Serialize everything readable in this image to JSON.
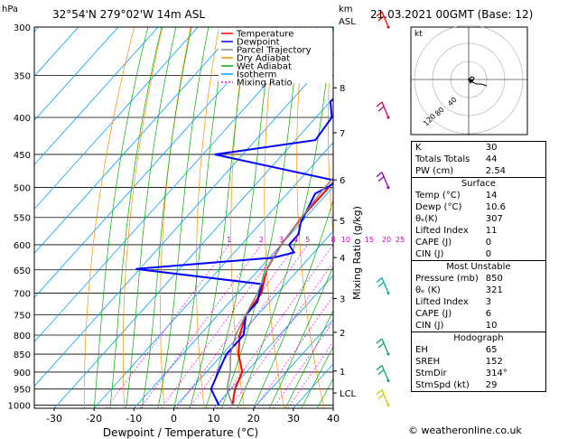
{
  "header": {
    "hpa_unit": "hPa",
    "location": "32°54'N 279°02'W 14m ASL",
    "km_unit": "km",
    "asl_unit": "ASL",
    "datetime": "21.03.2021 00GMT (Base: 12)"
  },
  "legend": [
    {
      "label": "Temperature",
      "color": "#ff0000"
    },
    {
      "label": "Dewpoint",
      "color": "#0000ff"
    },
    {
      "label": "Parcel Trajectory",
      "color": "#888888"
    },
    {
      "label": "Dry Adiabat",
      "color": "#ff8c00"
    },
    {
      "label": "Wet Adiabat",
      "color": "#00b000"
    },
    {
      "label": "Isotherm",
      "color": "#00a0ff"
    },
    {
      "label": "Mixing Ratio",
      "color": "#ff00ff"
    }
  ],
  "chart_data": {
    "type": "line",
    "xlabel": "Dewpoint / Temperature (°C)",
    "ylabel_right": "Mixing Ratio (g/kg)",
    "x_ticks": [
      -30,
      -20,
      -10,
      0,
      10,
      20,
      30,
      40
    ],
    "xlim": [
      -35,
      40
    ],
    "pressure_ticks": [
      300,
      350,
      400,
      450,
      500,
      550,
      600,
      650,
      700,
      750,
      800,
      850,
      900,
      950,
      1000
    ],
    "ylim": [
      1010,
      300
    ],
    "height_ticks": [
      {
        "label": "8",
        "p": 364
      },
      {
        "label": "7",
        "p": 420
      },
      {
        "label": "6",
        "p": 488
      },
      {
        "label": "5",
        "p": 555
      },
      {
        "label": "4",
        "p": 625
      },
      {
        "label": "3",
        "p": 712
      },
      {
        "label": "2",
        "p": 793
      },
      {
        "label": "1",
        "p": 897
      },
      {
        "label": "LCL",
        "p": 962
      }
    ],
    "mixing_ratio_labels": [
      "1",
      "2",
      "3",
      "4",
      "5",
      "8",
      "10",
      "15",
      "20",
      "25"
    ],
    "series": [
      {
        "name": "Temperature",
        "points": [
          [
            -1,
            300
          ],
          [
            -3,
            350
          ],
          [
            -6,
            400
          ],
          [
            -11,
            450
          ],
          [
            -11,
            500
          ],
          [
            -11,
            550
          ],
          [
            -10,
            600
          ],
          [
            -8,
            650
          ],
          [
            -4,
            700
          ],
          [
            -3,
            750
          ],
          [
            0,
            800
          ],
          [
            4,
            850
          ],
          [
            9,
            900
          ],
          [
            11,
            950
          ],
          [
            14,
            1000
          ]
        ]
      },
      {
        "name": "Dewpoint",
        "points": [
          [
            -18,
            300
          ],
          [
            -20,
            320
          ],
          [
            -22,
            340
          ],
          [
            -28,
            360
          ],
          [
            -30,
            380
          ],
          [
            -26,
            400
          ],
          [
            -25,
            430
          ],
          [
            -47,
            450
          ],
          [
            -10,
            490
          ],
          [
            -13,
            510
          ],
          [
            -10,
            560
          ],
          [
            -8,
            580
          ],
          [
            -8,
            600
          ],
          [
            -5,
            615
          ],
          [
            -9,
            625
          ],
          [
            -41,
            648
          ],
          [
            -6,
            680
          ],
          [
            -3,
            720
          ],
          [
            -3,
            750
          ],
          [
            1,
            800
          ],
          [
            1,
            850
          ],
          [
            3,
            900
          ],
          [
            5,
            950
          ],
          [
            10.6,
            1000
          ]
        ]
      },
      {
        "name": "Parcel Trajectory",
        "points": [
          [
            -10,
            300
          ],
          [
            -10,
            350
          ],
          [
            -10,
            400
          ],
          [
            -12,
            450
          ],
          [
            -12,
            500
          ],
          [
            -11,
            550
          ],
          [
            -10,
            600
          ],
          [
            -8,
            650
          ],
          [
            -5,
            700
          ],
          [
            -3,
            750
          ],
          [
            -1,
            800
          ],
          [
            2,
            850
          ],
          [
            6,
            900
          ],
          [
            9,
            950
          ],
          [
            14,
            1000
          ]
        ]
      }
    ]
  },
  "winds": [
    {
      "p": 300,
      "color": "#ff0000"
    },
    {
      "p": 400,
      "color": "#cc0066"
    },
    {
      "p": 500,
      "color": "#8800cc"
    },
    {
      "p": 700,
      "color": "#00aaaa"
    },
    {
      "p": 850,
      "color": "#00aa66"
    },
    {
      "p": 925,
      "color": "#00aa66"
    },
    {
      "p": 1000,
      "color": "#cccc00"
    }
  ],
  "hodograph": {
    "label": "kt",
    "ring_labels": [
      "40",
      "80",
      "120"
    ]
  },
  "indices": [
    {
      "label": "K",
      "value": "30"
    },
    {
      "label": "Totals Totals",
      "value": "44"
    },
    {
      "label": "PW (cm)",
      "value": "2.54"
    }
  ],
  "surface": {
    "title": "Surface",
    "rows": [
      {
        "label": "Temp (°C)",
        "value": "14"
      },
      {
        "label": "Dewp (°C)",
        "value": "10.6"
      },
      {
        "label": "θₑ(K)",
        "value": "307"
      },
      {
        "label": "Lifted Index",
        "value": "11"
      },
      {
        "label": "CAPE (J)",
        "value": "0"
      },
      {
        "label": "CIN (J)",
        "value": "0"
      }
    ]
  },
  "most_unstable": {
    "title": "Most Unstable",
    "rows": [
      {
        "label": "Pressure (mb)",
        "value": "850"
      },
      {
        "label": "θₑ (K)",
        "value": "321"
      },
      {
        "label": "Lifted Index",
        "value": "3"
      },
      {
        "label": "CAPE (J)",
        "value": "6"
      },
      {
        "label": "CIN (J)",
        "value": "10"
      }
    ]
  },
  "hodograph_table": {
    "title": "Hodograph",
    "rows": [
      {
        "label": "EH",
        "value": "65"
      },
      {
        "label": "SREH",
        "value": "152"
      },
      {
        "label": "StmDir",
        "value": "314°"
      },
      {
        "label": "StmSpd (kt)",
        "value": "29"
      }
    ]
  },
  "copyright": "© weatheronline.co.uk"
}
